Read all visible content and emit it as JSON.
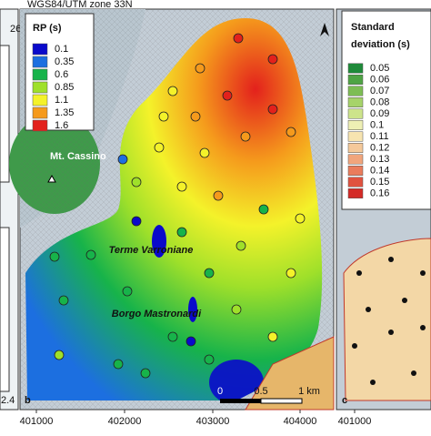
{
  "header": {
    "crs": "WGS84/UTM zone 33N",
    "left_edge_top": "26",
    "left_edge_bottom": "2.4"
  },
  "panel_b": {
    "letter": "b",
    "legend": {
      "title": "RP (s)",
      "items": [
        {
          "label": 0.1,
          "color": "#0a0acb"
        },
        {
          "label": 0.35,
          "color": "#1c6fe0"
        },
        {
          "label": 0.6,
          "color": "#17b34a"
        },
        {
          "label": 0.85,
          "color": "#9fe02a"
        },
        {
          "label": 1.1,
          "color": "#f4f22a"
        },
        {
          "label": 1.35,
          "color": "#f59a1c"
        },
        {
          "label": 1.6,
          "color": "#e3211c"
        }
      ]
    },
    "places": [
      "Mt. Cassino",
      "Terme Varroniane",
      "Borgo Mastronardi"
    ],
    "scale": [
      0,
      0.5,
      "1 km"
    ]
  },
  "panel_c": {
    "letter": "c",
    "legend": {
      "title": [
        "Standard",
        "deviation (s)"
      ],
      "items": [
        {
          "label": 0.05,
          "color": "#1f8a3a"
        },
        {
          "label": 0.06,
          "color": "#4ea444"
        },
        {
          "label": 0.07,
          "color": "#7dbd54"
        },
        {
          "label": 0.08,
          "color": "#a6d36a"
        },
        {
          "label": 0.09,
          "color": "#cde48b"
        },
        {
          "label": 0.1,
          "color": "#eef0b4"
        },
        {
          "label": 0.11,
          "color": "#f7e4b0"
        },
        {
          "label": 0.12,
          "color": "#f5c99a"
        },
        {
          "label": 0.13,
          "color": "#f1a57c"
        },
        {
          "label": 0.14,
          "color": "#ea7c5c"
        },
        {
          "label": 0.15,
          "color": "#e0523f"
        },
        {
          "label": 0.16,
          "color": "#d42a26"
        }
      ]
    }
  },
  "x_axis": [
    401000,
    402000,
    403000,
    404000,
    401000
  ]
}
